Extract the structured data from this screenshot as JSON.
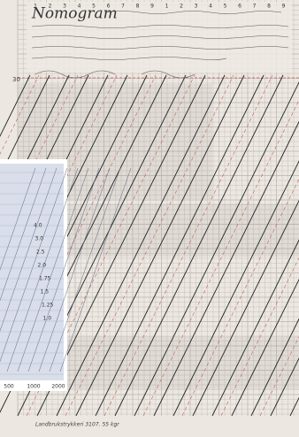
{
  "document": {
    "title": "Nomogram",
    "top_scale": [
      "1",
      "2",
      "3",
      "4",
      "5",
      "6",
      "7",
      "8",
      "9",
      "1",
      "2",
      "3",
      "4",
      "5",
      "6",
      "7",
      "8",
      "9"
    ],
    "left_mark": "30",
    "inset": {
      "x_labels": [
        "500",
        "1000",
        "2000"
      ],
      "scale_labels": [
        "4.0",
        "3.0",
        "2.5",
        "2.0",
        "1.75",
        "1.5",
        "1.25",
        "1.0"
      ]
    },
    "footer": "Landbrukstrykkeri 3107. 55 kgr"
  }
}
